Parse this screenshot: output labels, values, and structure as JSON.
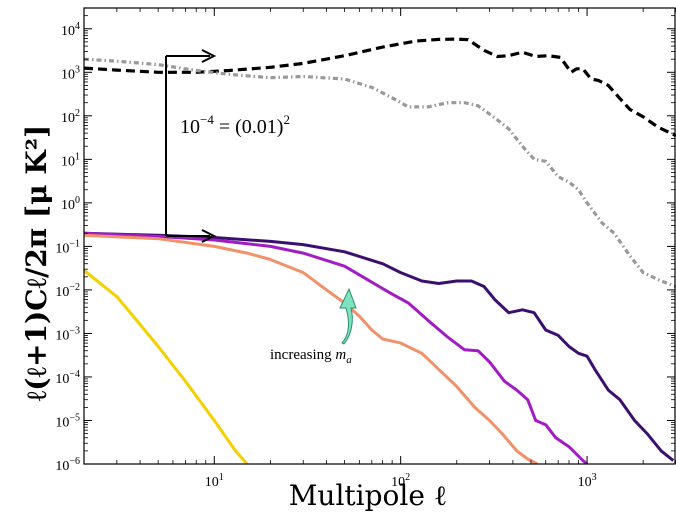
{
  "chart_data": {
    "type": "line",
    "title": "",
    "xlabel": "Multipole ℓ",
    "ylabel": "ℓ(ℓ+1)Cℓ/2π [μ K²]",
    "xscale": "log",
    "yscale": "log",
    "xlim": [
      2,
      3000
    ],
    "ylim": [
      1e-06,
      30000
    ],
    "grid": false,
    "legend": "none",
    "x_ticks": [
      {
        "value": 10,
        "base": "10",
        "exp": "1"
      },
      {
        "value": 100,
        "base": "10",
        "exp": "2"
      },
      {
        "value": 1000,
        "base": "10",
        "exp": "3"
      }
    ],
    "y_ticks": [
      {
        "value": 10000,
        "base": "10",
        "exp": "4"
      },
      {
        "value": 1000,
        "base": "10",
        "exp": "3"
      },
      {
        "value": 100,
        "base": "10",
        "exp": "2"
      },
      {
        "value": 10,
        "base": "10",
        "exp": "1"
      },
      {
        "value": 1,
        "base": "10",
        "exp": "0"
      },
      {
        "value": 0.1,
        "base": "10",
        "exp": "−1"
      },
      {
        "value": 0.01,
        "base": "10",
        "exp": "−2"
      },
      {
        "value": 0.001,
        "base": "10",
        "exp": "−3"
      },
      {
        "value": 0.0001,
        "base": "10",
        "exp": "−4"
      },
      {
        "value": 1e-05,
        "base": "10",
        "exp": "−5"
      },
      {
        "value": 1e-06,
        "base": "10",
        "exp": "−6"
      }
    ],
    "series": [
      {
        "color": "#000000",
        "style": "dashed",
        "points": [
          [
            2,
            1250
          ],
          [
            3,
            1120
          ],
          [
            5,
            1000
          ],
          [
            8,
            1000
          ],
          [
            12,
            1100
          ],
          [
            20,
            1300
          ],
          [
            30,
            1600
          ],
          [
            50,
            2400
          ],
          [
            80,
            3800
          ],
          [
            120,
            5200
          ],
          [
            160,
            5700
          ],
          [
            200,
            5800
          ],
          [
            230,
            5600
          ],
          [
            280,
            3200
          ],
          [
            330,
            2300
          ],
          [
            380,
            2400
          ],
          [
            450,
            2900
          ],
          [
            530,
            2300
          ],
          [
            620,
            2400
          ],
          [
            720,
            2200
          ],
          [
            820,
            1000
          ],
          [
            880,
            1200
          ],
          [
            950,
            1200
          ],
          [
            1050,
            700
          ],
          [
            1150,
            650
          ],
          [
            1300,
            500
          ],
          [
            1500,
            250
          ],
          [
            1700,
            140
          ],
          [
            2000,
            95
          ],
          [
            2400,
            55
          ],
          [
            3000,
            35
          ]
        ]
      },
      {
        "color": "#999999",
        "style": "dashdot",
        "points": [
          [
            2,
            2000
          ],
          [
            3,
            1800
          ],
          [
            5,
            1500
          ],
          [
            8,
            1100
          ],
          [
            12,
            900
          ],
          [
            20,
            750
          ],
          [
            30,
            800
          ],
          [
            50,
            700
          ],
          [
            70,
            450
          ],
          [
            90,
            260
          ],
          [
            110,
            160
          ],
          [
            140,
            160
          ],
          [
            180,
            200
          ],
          [
            220,
            200
          ],
          [
            260,
            170
          ],
          [
            320,
            90
          ],
          [
            380,
            50
          ],
          [
            450,
            20
          ],
          [
            520,
            10
          ],
          [
            600,
            9
          ],
          [
            700,
            4
          ],
          [
            800,
            3
          ],
          [
            900,
            2
          ],
          [
            1000,
            1
          ],
          [
            1200,
            0.35
          ],
          [
            1400,
            0.2
          ],
          [
            1700,
            0.06
          ],
          [
            2000,
            0.025
          ],
          [
            2500,
            0.016
          ],
          [
            3000,
            0.012
          ]
        ]
      },
      {
        "color": "#3b0f6e",
        "style": "solid",
        "points": [
          [
            2,
            0.2
          ],
          [
            5,
            0.18
          ],
          [
            10,
            0.16
          ],
          [
            20,
            0.13
          ],
          [
            30,
            0.11
          ],
          [
            50,
            0.075
          ],
          [
            80,
            0.04
          ],
          [
            100,
            0.025
          ],
          [
            130,
            0.016
          ],
          [
            160,
            0.014
          ],
          [
            200,
            0.016
          ],
          [
            240,
            0.016
          ],
          [
            280,
            0.012
          ],
          [
            320,
            0.006
          ],
          [
            380,
            0.003
          ],
          [
            450,
            0.0035
          ],
          [
            520,
            0.003
          ],
          [
            600,
            0.0012
          ],
          [
            700,
            0.0009
          ],
          [
            800,
            0.0005
          ],
          [
            900,
            0.00035
          ],
          [
            1000,
            0.0003
          ],
          [
            1100,
            0.00015
          ],
          [
            1300,
            5e-05
          ],
          [
            1500,
            3e-05
          ],
          [
            1800,
            1e-05
          ],
          [
            2100,
            5e-06
          ],
          [
            2500,
            2e-06
          ],
          [
            2900,
            1.2e-06
          ]
        ]
      },
      {
        "color": "#a21cc4",
        "style": "solid",
        "points": [
          [
            2,
            0.2
          ],
          [
            5,
            0.17
          ],
          [
            10,
            0.14
          ],
          [
            20,
            0.1
          ],
          [
            30,
            0.07
          ],
          [
            50,
            0.035
          ],
          [
            70,
            0.015
          ],
          [
            90,
            0.008
          ],
          [
            110,
            0.005
          ],
          [
            140,
            0.002
          ],
          [
            180,
            0.0008
          ],
          [
            220,
            0.00042
          ],
          [
            260,
            0.0004
          ],
          [
            300,
            0.00022
          ],
          [
            360,
            8e-05
          ],
          [
            420,
            5e-05
          ],
          [
            480,
            3e-05
          ],
          [
            530,
            1e-05
          ],
          [
            600,
            8e-06
          ],
          [
            680,
            4e-06
          ],
          [
            800,
            2.5e-06
          ],
          [
            950,
            1.2e-06
          ],
          [
            1000,
            1e-06
          ]
        ]
      },
      {
        "color": "#f0916a",
        "style": "solid",
        "points": [
          [
            2,
            0.18
          ],
          [
            5,
            0.15
          ],
          [
            10,
            0.1
          ],
          [
            15,
            0.07
          ],
          [
            20,
            0.05
          ],
          [
            30,
            0.025
          ],
          [
            40,
            0.01
          ],
          [
            50,
            0.005
          ],
          [
            60,
            0.0025
          ],
          [
            70,
            0.0012
          ],
          [
            80,
            0.00075
          ],
          [
            100,
            0.0006
          ],
          [
            130,
            0.00035
          ],
          [
            160,
            0.00015
          ],
          [
            200,
            6e-05
          ],
          [
            250,
            2e-05
          ],
          [
            300,
            1e-05
          ],
          [
            350,
            5e-06
          ],
          [
            420,
            2e-06
          ],
          [
            480,
            1.3e-06
          ],
          [
            540,
            1e-06
          ]
        ]
      },
      {
        "color": "#f3d000",
        "style": "solid",
        "points": [
          [
            2,
            0.028
          ],
          [
            3,
            0.007
          ],
          [
            4,
            0.0016
          ],
          [
            5,
            0.0005
          ],
          [
            7,
            8e-05
          ],
          [
            10,
            1e-05
          ],
          [
            13,
            2e-06
          ],
          [
            15,
            1e-06
          ]
        ]
      }
    ],
    "annotations": [
      {
        "text_main": "10",
        "text_exp": "−4",
        "text_rest": " = (0.01)",
        "text_exp2": "2"
      },
      {
        "text_main": "increasing ",
        "text_italic": "m",
        "text_sub": "a"
      }
    ]
  }
}
